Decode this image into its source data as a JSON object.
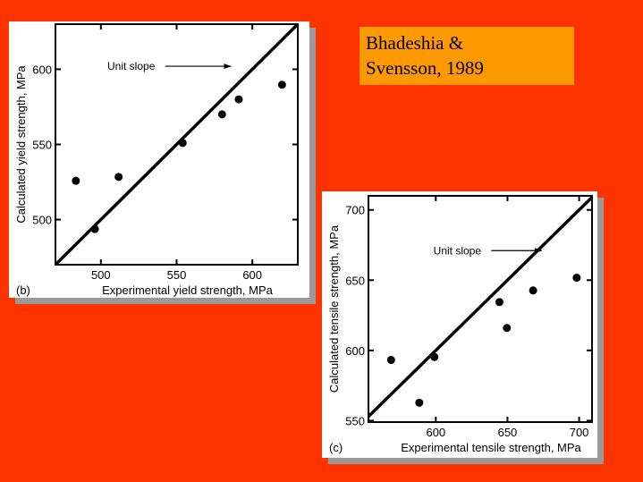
{
  "citation": {
    "line1": "Bhadeshia &",
    "line2": "Svensson, 1989"
  },
  "chart_data": [
    {
      "type": "scatter",
      "panel_label": "(b)",
      "xlabel": "Experimental yield strength, MPa",
      "ylabel": "Calculated yield strength, MPa",
      "xlim": [
        470,
        630
      ],
      "ylim": [
        470,
        630
      ],
      "xticks": [
        500,
        550,
        600
      ],
      "yticks": [
        500,
        550,
        600
      ],
      "x": [
        483.5,
        496,
        511.7,
        554,
        580,
        591,
        619.6
      ],
      "y": [
        525.8,
        493.7,
        528.4,
        551,
        570,
        580,
        589.7
      ],
      "reference_line": {
        "label": "Unit slope",
        "from": [
          470,
          470
        ],
        "to": [
          630,
          630
        ],
        "label_at": [
          520,
          602
        ],
        "arrow_to": [
          586,
          602
        ]
      }
    },
    {
      "type": "scatter",
      "panel_label": "(c)",
      "xlabel": "Experimental tensile strength, MPa",
      "ylabel": "Calculated tensile strength, MPa",
      "xlim": [
        553,
        709
      ],
      "ylim": [
        549,
        710
      ],
      "xticks": [
        600,
        650,
        700
      ],
      "yticks": [
        550,
        600,
        650,
        700
      ],
      "x": [
        568.8,
        588.5,
        599,
        644.4,
        649.6,
        667.9,
        698.3
      ],
      "y": [
        593.2,
        562.8,
        595.3,
        634.4,
        616,
        642.7,
        651.7
      ],
      "reference_line": {
        "label": "Unit slope",
        "from": [
          553,
          553
        ],
        "to": [
          709,
          709
        ],
        "label_at": [
          615,
          671
        ],
        "arrow_to": [
          674,
          671
        ]
      }
    }
  ]
}
